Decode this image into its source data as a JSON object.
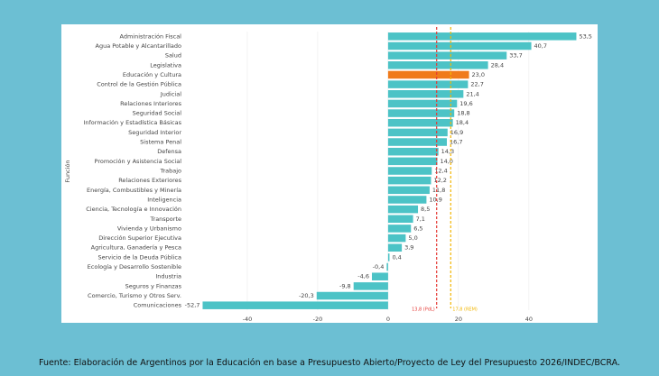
{
  "chart_data": {
    "type": "hbar",
    "y_label": "Función",
    "categories": [
      "Administración Fiscal",
      "Agua Potable y Alcantarillado",
      "Salud",
      "Legislativa",
      "Educación y Cultura",
      "Control de la Gestión Pública",
      "Judicial",
      "Relaciones Interiores",
      "Seguridad Social",
      "Información y Estadística Básicas",
      "Seguridad Interior",
      "Sistema Penal",
      "Defensa",
      "Promoción y Asistencia Social",
      "Trabajo",
      "Relaciones Exteriores",
      "Energía, Combustibles y Minería",
      "Inteligencia",
      "Ciencia, Tecnología e Innovación",
      "Transporte",
      "Vivienda y Urbanismo",
      "Dirección Superior Ejecutiva",
      "Agricultura, Ganadería y Pesca",
      "Servicio de la Deuda Pública",
      "Ecología y Desarrollo Sostenible",
      "Industria",
      "Seguros y Finanzas",
      "Comercio, Turismo y Otros Serv.",
      "Comunicaciones"
    ],
    "values": [
      53.5,
      40.7,
      33.7,
      28.4,
      23.0,
      22.7,
      21.4,
      19.6,
      18.8,
      18.4,
      16.9,
      16.7,
      14.3,
      14.0,
      12.4,
      12.2,
      11.8,
      10.9,
      8.5,
      7.1,
      6.5,
      5.0,
      3.9,
      0.4,
      -0.4,
      -4.6,
      -9.8,
      -20.3,
      -52.7
    ],
    "value_labels": [
      "53,5",
      "40,7",
      "33,7",
      "28,4",
      "23,0",
      "22,7",
      "21,4",
      "19,6",
      "18,8",
      "18,4",
      "16,9",
      "16,7",
      "14,3",
      "14,0",
      "12,4",
      "12,2",
      "11,8",
      "10,9",
      "8,5",
      "7,1",
      "6,5",
      "5,0",
      "3,9",
      "0,4",
      "-0,4",
      "-4,6",
      "-9,8",
      "-20,3",
      "-52,7"
    ],
    "colors": [
      "#4cc3c6",
      "#4cc3c6",
      "#4cc3c6",
      "#4cc3c6",
      "#f07a1a",
      "#4cc3c6",
      "#4cc3c6",
      "#4cc3c6",
      "#4cc3c6",
      "#4cc3c6",
      "#4cc3c6",
      "#4cc3c6",
      "#4cc3c6",
      "#4cc3c6",
      "#4cc3c6",
      "#4cc3c6",
      "#4cc3c6",
      "#4cc3c6",
      "#4cc3c6",
      "#4cc3c6",
      "#4cc3c6",
      "#4cc3c6",
      "#4cc3c6",
      "#4cc3c6",
      "#4cc3c6",
      "#4cc3c6",
      "#4cc3c6",
      "#4cc3c6",
      "#4cc3c6"
    ],
    "xlim": [
      -55,
      58
    ],
    "xticks": [
      -40,
      -20,
      0,
      20,
      40
    ],
    "reference_lines": [
      {
        "value": 13.8,
        "label": "13,8 (PdL)",
        "color": "#e53935"
      },
      {
        "value": 17.8,
        "label": "17,8 (REM)",
        "color": "#f2b705"
      }
    ]
  },
  "source": "Fuente: Elaboración de Argentinos por la Educación en base a Presupuesto Abierto/Proyecto de Ley del Presupuesto 2026/INDEC/BCRA."
}
